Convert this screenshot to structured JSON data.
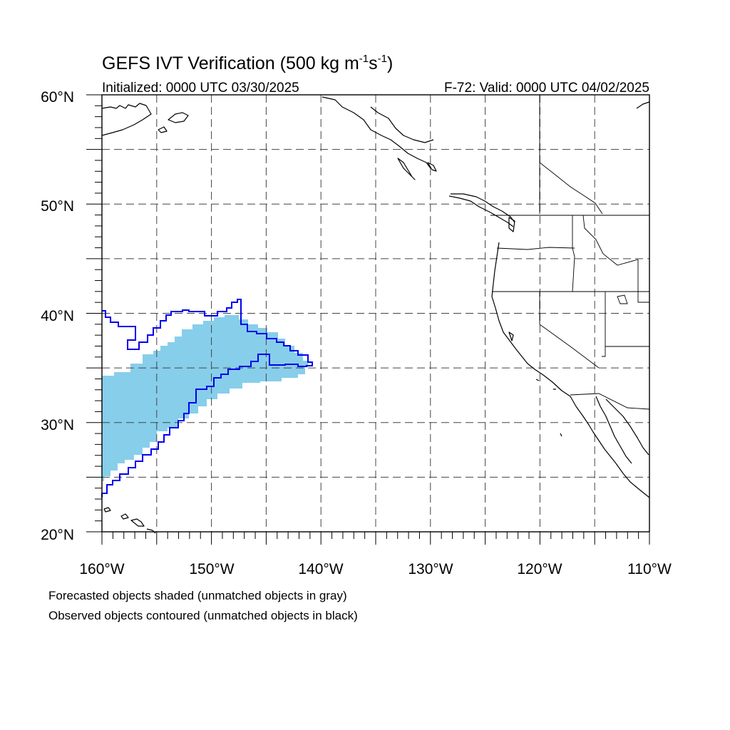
{
  "title": {
    "main": "GEFS IVT Verification (500 kg m",
    "sup1": "-1",
    "mid": "s",
    "sup2": "-1",
    "close": ")"
  },
  "subtitle": {
    "left": "Initialized: 0000 UTC 03/30/2025",
    "right": "F-72: Valid: 0000 UTC 04/02/2025"
  },
  "map": {
    "lon_range": [
      -160,
      -110
    ],
    "lat_range": [
      20,
      60
    ],
    "lat_labels": [
      "20°N",
      "30°N",
      "40°N",
      "50°N",
      "60°N"
    ],
    "lon_labels": [
      "160°W",
      "150°W",
      "140°W",
      "130°W",
      "120°W",
      "110°W"
    ],
    "grid_spacing_deg": 5,
    "forecast_fill_color": "#87ceeb",
    "observed_contour_color": "#0000ee"
  },
  "footnotes": {
    "line1": "Forecasted objects shaded (unmatched objects in gray)",
    "line2": "Observed objects contoured (unmatched objects in black)"
  }
}
